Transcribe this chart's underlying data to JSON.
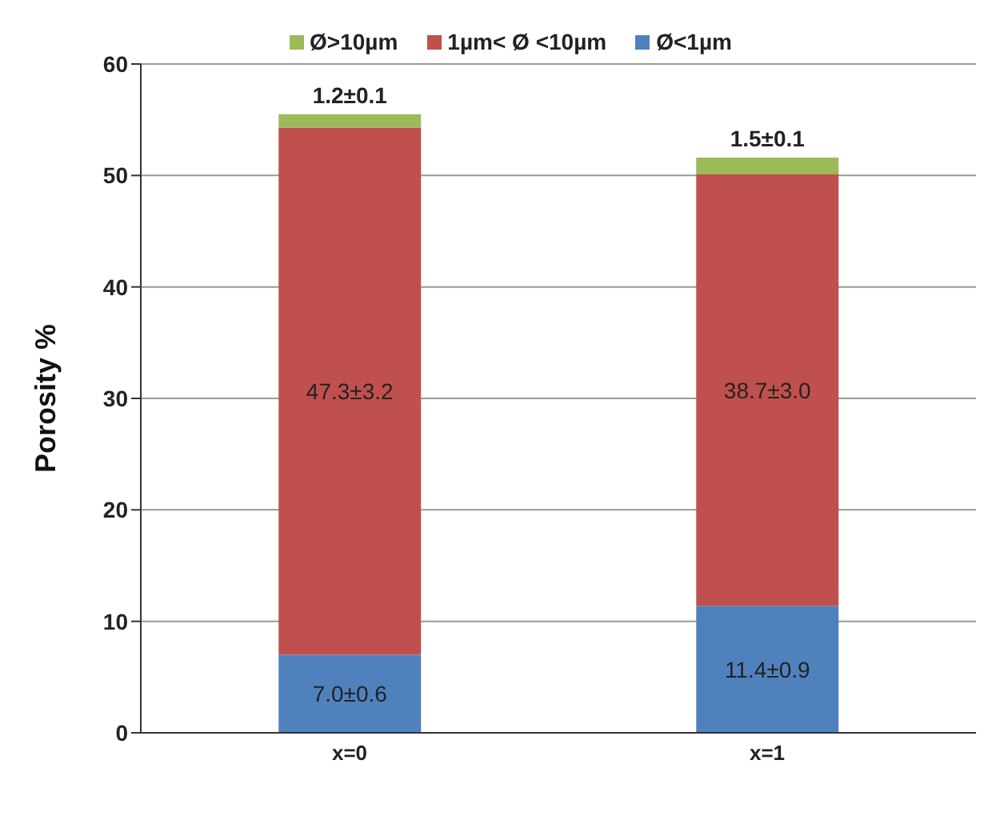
{
  "chart_data": {
    "type": "bar",
    "stacked": true,
    "ylabel": "Porosity %",
    "categories": [
      "x=0",
      "x=1"
    ],
    "series": [
      {
        "name": "Ø<1µm",
        "color": "#4f81bd",
        "values": [
          7.0,
          11.4
        ],
        "value_labels": [
          "7.0±0.6",
          "11.4±0.9"
        ]
      },
      {
        "name": "1µm< Ø <10µm",
        "color": "#c0504d",
        "values": [
          47.3,
          38.7
        ],
        "value_labels": [
          "47.3±3.2",
          "38.7±3.0"
        ]
      },
      {
        "name": "Ø>10µm",
        "color": "#9bbb59",
        "values": [
          1.2,
          1.5
        ],
        "value_labels": [
          "1.2±0.1",
          "1.5±0.1"
        ]
      }
    ],
    "ylim": [
      0,
      60
    ],
    "yticks": [
      0,
      10,
      20,
      30,
      40,
      50,
      60
    ],
    "grid": "y",
    "legend": "top"
  }
}
